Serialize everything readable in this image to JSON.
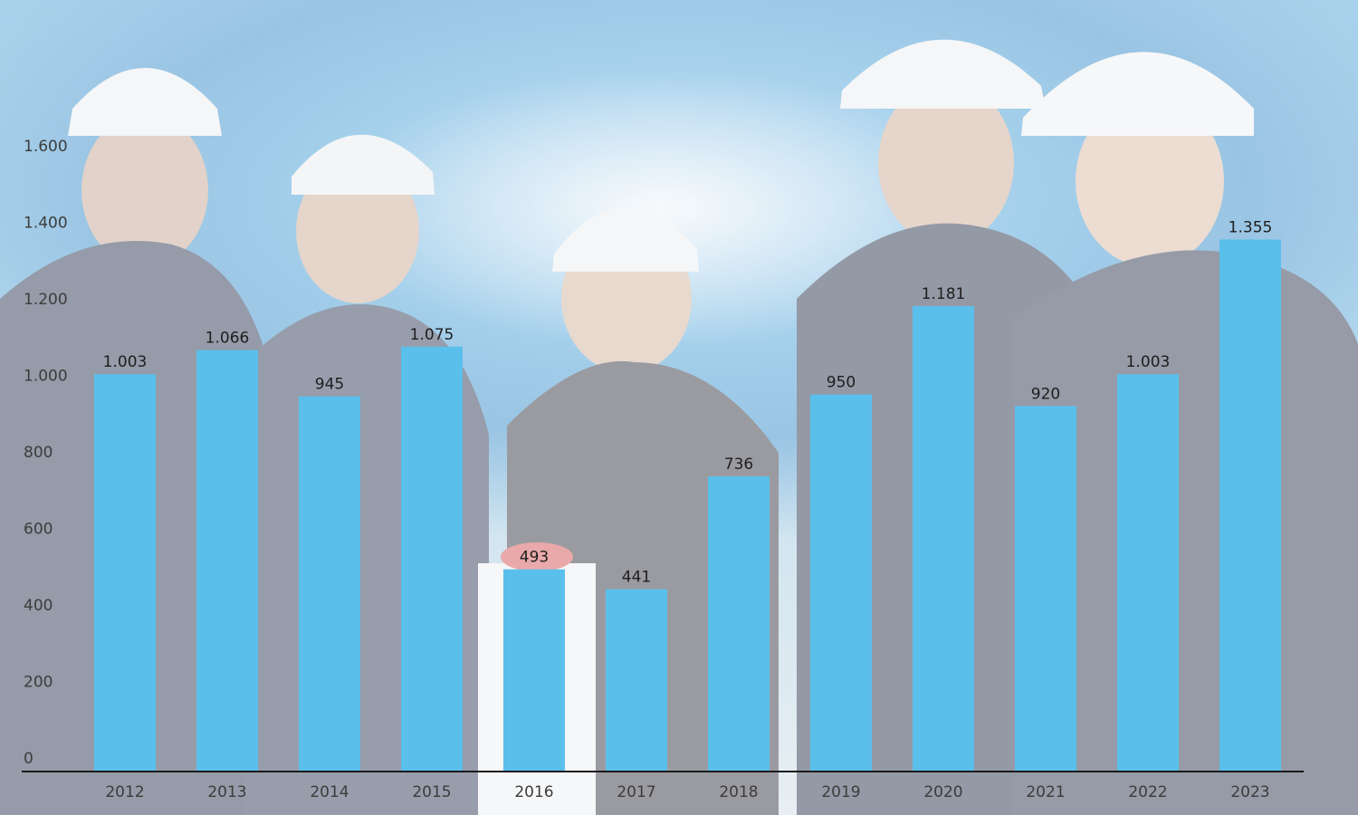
{
  "colors": {
    "bar": "#5bbfec",
    "axis": "#1a1a1a",
    "text": "#333333"
  },
  "chart_data": {
    "type": "bar",
    "categories": [
      "2012",
      "2013",
      "2014",
      "2015",
      "2016",
      "2017",
      "2018",
      "2019",
      "2020",
      "2021",
      "2022",
      "2023"
    ],
    "values": [
      1003,
      1066,
      945,
      1075,
      493,
      441,
      736,
      950,
      1181,
      920,
      1003,
      1355
    ],
    "value_labels": [
      "1.003",
      "1.066",
      "945",
      "1.075",
      "493",
      "441",
      "736",
      "950",
      "1.181",
      "920",
      "1.003",
      "1.355"
    ],
    "y_ticks": [
      0,
      200,
      400,
      600,
      800,
      1000,
      1200,
      1400,
      1600
    ],
    "y_tick_labels": [
      "0",
      "200",
      "400",
      "600",
      "800",
      "1.000",
      "1.200",
      "1.400",
      "1.600"
    ],
    "ylim": [
      0,
      1600
    ],
    "title": "",
    "xlabel": "",
    "ylabel": "",
    "grid": false,
    "legend": "none"
  }
}
